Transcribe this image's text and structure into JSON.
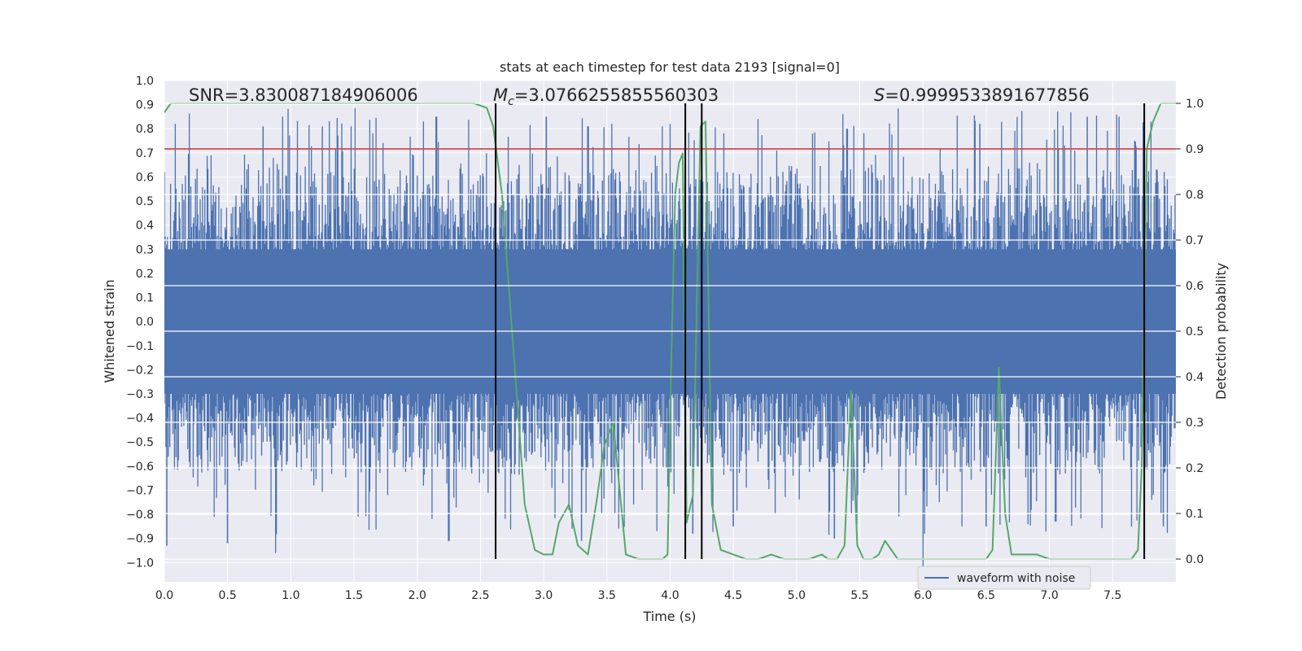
{
  "chart_data": {
    "type": "line",
    "title": "stats at each timestep for test data 2193 [signal=0]",
    "xlabel": "Time (s)",
    "ylabel": "Whitened strain",
    "y2label": "Detection probability",
    "xlim": [
      0.0,
      8.0
    ],
    "ylim": [
      -1.08,
      1.0
    ],
    "y2lim": [
      -0.05,
      1.05
    ],
    "x_ticks": [
      "0.0",
      "0.5",
      "1.0",
      "1.5",
      "2.0",
      "2.5",
      "3.0",
      "3.5",
      "4.0",
      "4.5",
      "5.0",
      "5.5",
      "6.0",
      "6.5",
      "7.0",
      "7.5"
    ],
    "y_ticks": [
      "1.0",
      "0.9",
      "0.8",
      "0.7",
      "0.6",
      "0.5",
      "0.4",
      "0.3",
      "0.2",
      "0.1",
      "0.0",
      "−0.1",
      "−0.2",
      "−0.3",
      "−0.4",
      "−0.5",
      "−0.6",
      "−0.7",
      "−0.8",
      "−0.9",
      "−1.0"
    ],
    "y2_ticks": [
      "1.0",
      "0.9",
      "0.8",
      "0.7",
      "0.6",
      "0.5",
      "0.4",
      "0.3",
      "0.2",
      "0.1",
      "0.0"
    ],
    "annotations": {
      "snr": "SNR=3.830087184906006",
      "mc_symbol": "M",
      "mc_sub": "c",
      "mc_value": "=3.0766255855560303",
      "s_symbol": "S",
      "s_value": "=0.9999533891677856"
    },
    "threshold": {
      "y2": 0.9,
      "color": "#c44e52"
    },
    "vlines": [
      2.62,
      4.12,
      4.25,
      7.75
    ],
    "legend": {
      "label": "waveform with noise",
      "placement": "lower-right"
    },
    "series": [
      {
        "name": "waveform with noise",
        "color": "#4c72b0",
        "envelope": {
          "upper_typical": 0.55,
          "lower_typical": -0.55,
          "upper_peaks": [
            [
              0.78,
              0.81
            ],
            [
              1.25,
              0.81
            ],
            [
              2.15,
              0.85
            ],
            [
              3.02,
              0.85
            ],
            [
              3.35,
              0.81
            ],
            [
              4.0,
              0.82
            ],
            [
              5.4,
              0.8
            ],
            [
              6.45,
              0.82
            ],
            [
              7.3,
              0.85
            ],
            [
              7.55,
              0.85
            ]
          ],
          "lower_peaks": [
            [
              0.02,
              -0.93
            ],
            [
              0.5,
              -0.92
            ],
            [
              0.88,
              -0.96
            ],
            [
              2.25,
              -0.91
            ],
            [
              3.3,
              -0.91
            ],
            [
              4.18,
              -0.88
            ],
            [
              4.5,
              -0.85
            ],
            [
              5.3,
              -0.9
            ],
            [
              6.0,
              -1.02
            ],
            [
              6.5,
              -0.85
            ],
            [
              7.05,
              -0.83
            ],
            [
              7.9,
              -0.85
            ]
          ]
        }
      },
      {
        "name": "detection probability",
        "color": "#55a868",
        "axis": "y2",
        "x": [
          0.0,
          0.05,
          0.15,
          0.4,
          0.8,
          1.2,
          1.6,
          2.0,
          2.25,
          2.45,
          2.55,
          2.6,
          2.67,
          2.75,
          2.85,
          2.93,
          3.0,
          3.07,
          3.12,
          3.2,
          3.27,
          3.35,
          3.42,
          3.48,
          3.55,
          3.65,
          3.75,
          3.82,
          3.88,
          3.94,
          3.98,
          4.01,
          4.04,
          4.07,
          4.1,
          4.13,
          4.18,
          4.24,
          4.28,
          4.33,
          4.4,
          4.5,
          4.6,
          4.7,
          4.8,
          4.9,
          5.0,
          5.1,
          5.2,
          5.25,
          5.32,
          5.38,
          5.43,
          5.48,
          5.53,
          5.6,
          5.65,
          5.7,
          5.8,
          5.9,
          6.0,
          6.2,
          6.4,
          6.5,
          6.55,
          6.6,
          6.65,
          6.7,
          6.8,
          6.9,
          7.0,
          7.2,
          7.4,
          7.5,
          7.6,
          7.65,
          7.7,
          7.73,
          7.77,
          7.82,
          7.88,
          7.95,
          8.0
        ],
        "y": [
          0.98,
          1.0,
          1.0,
          1.0,
          1.0,
          1.0,
          1.0,
          1.0,
          1.0,
          1.0,
          0.99,
          0.95,
          0.8,
          0.5,
          0.12,
          0.02,
          0.01,
          0.01,
          0.08,
          0.12,
          0.03,
          0.01,
          0.13,
          0.25,
          0.3,
          0.01,
          0.0,
          0.0,
          0.0,
          0.0,
          0.01,
          0.45,
          0.8,
          0.87,
          0.89,
          0.08,
          0.14,
          0.95,
          0.96,
          0.12,
          0.02,
          0.01,
          0.0,
          0.0,
          0.01,
          0.0,
          0.0,
          0.0,
          0.01,
          0.0,
          0.0,
          0.03,
          0.37,
          0.03,
          0.0,
          0.0,
          0.01,
          0.04,
          0.0,
          0.0,
          0.0,
          0.0,
          0.0,
          0.0,
          0.02,
          0.42,
          0.1,
          0.01,
          0.01,
          0.01,
          0.0,
          0.0,
          0.0,
          0.0,
          0.0,
          0.0,
          0.02,
          0.2,
          0.9,
          0.96,
          1.0,
          1.0,
          1.0
        ]
      }
    ]
  }
}
